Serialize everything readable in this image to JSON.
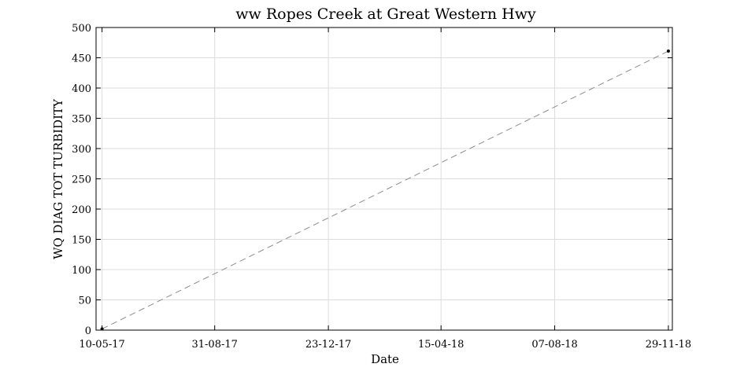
{
  "chart_data": {
    "type": "line",
    "title": "ww Ropes Creek at Great Western Hwy",
    "xlabel": "Date",
    "ylabel": "WQ DIAG TOT TURBIDITY",
    "x_axis_type": "date",
    "x_tick_labels": [
      "10-05-17",
      "31-08-17",
      "23-12-17",
      "15-04-18",
      "07-08-18",
      "29-11-18"
    ],
    "x_ticks": [
      "2017-05-10",
      "2017-08-31",
      "2017-12-23",
      "2018-04-15",
      "2018-08-07",
      "2018-11-29"
    ],
    "xlim": [
      "2017-05-04",
      "2018-12-03"
    ],
    "ylim": [
      0,
      500
    ],
    "y_ticks": [
      0,
      50,
      100,
      150,
      200,
      250,
      300,
      350,
      400,
      450,
      500
    ],
    "grid": true,
    "line_style": "dashed",
    "line_color": "#8c8c8c",
    "marker_color": "#000000",
    "series": [
      {
        "points": [
          {
            "x": "2017-05-10",
            "y": 2
          },
          {
            "x": "2018-11-29",
            "y": 461
          }
        ]
      }
    ]
  }
}
